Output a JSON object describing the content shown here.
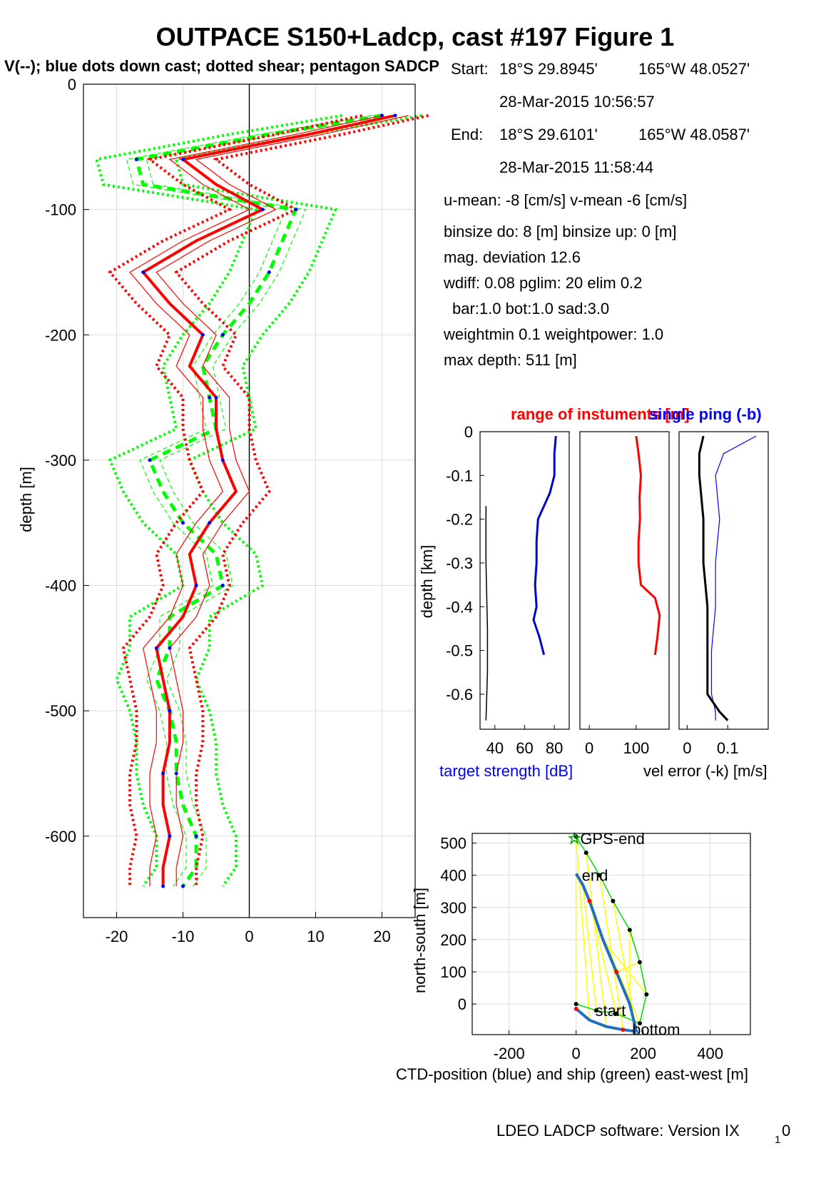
{
  "title": "OUTPACE S150+Ladcp, cast #197  Figure 1",
  "subtitle": "V(--); blue dots down cast; dotted shear; pentagon SADCP",
  "info": {
    "start_label": "Start:",
    "start_lat": "18°S 29.8945'",
    "start_lon": "165°W 48.0527'",
    "start_time": "28-Mar-2015 10:56:57",
    "end_label": "End:",
    "end_lat": "18°S 29.6101'",
    "end_lon": "165°W 48.0587'",
    "end_time": "28-Mar-2015 11:58:44",
    "means": "u-mean:  -8 [cm/s]    v-mean  -6 [cm/s]",
    "binsize": "binsize do: 8 [m]  binsize up:  0 [m]",
    "magdev": "mag. deviation 12.6",
    "params1": "wdiff: 0.08  pglim: 20  elim 0.2",
    "params2": "bar:1.0 bot:1.0 sad:3.0",
    "weights": "weightmin 0.1  weightpower: 1.0",
    "maxdepth": "max depth: 511 [m]"
  },
  "footer": "LDEO LADCP software: Version IX",
  "footer_sub": "1",
  "footer_tail": "0",
  "colors": {
    "u": "#ff0000",
    "v": "#00ff00",
    "dots": "#0000ff",
    "ts": "#0000cc",
    "rng": "#ff0000",
    "ctd": "#1f6fc5",
    "ship": "#00dd00",
    "link": "#ffff00"
  },
  "chart_data": [
    {
      "type": "line",
      "xlabel": "",
      "ylabel": "depth [m]",
      "xlim": [
        -25,
        25
      ],
      "ylim": [
        -665,
        0
      ],
      "xticks": [
        -20,
        -10,
        0,
        10,
        20
      ],
      "yticks": [
        0,
        -100,
        -200,
        -300,
        -400,
        -500,
        -600
      ],
      "grid": true,
      "depth": [
        -25,
        -40,
        -60,
        -80,
        -100,
        -125,
        -150,
        -175,
        -200,
        -225,
        -250,
        -275,
        -300,
        -325,
        -350,
        -375,
        -400,
        -425,
        -450,
        -475,
        -500,
        -525,
        -550,
        -575,
        -600,
        -625,
        -640
      ],
      "series": [
        {
          "name": "u",
          "values": [
            22,
            9,
            -10,
            -5,
            2,
            -8,
            -16,
            -12,
            -7,
            -9,
            -5,
            -5,
            -4,
            -2,
            -6,
            -9,
            -8,
            -10,
            -14,
            -13,
            -12,
            -12,
            -13,
            -13,
            -12,
            -13,
            -13
          ]
        },
        {
          "name": "v",
          "values": [
            20,
            3,
            -17,
            -16,
            7,
            5,
            3,
            0,
            -4,
            -7,
            -6,
            -5,
            -15,
            -13,
            -10,
            -5,
            -4,
            -12,
            -12,
            -14,
            -12,
            -11,
            -11,
            -10,
            -8,
            -8,
            -10
          ]
        }
      ]
    },
    {
      "type": "line",
      "title": "range of instuments [m]",
      "xlabel": "target strength [dB]",
      "ylabel": "depth [km]",
      "xlim": [
        30,
        90
      ],
      "ylim": [
        -0.68,
        0
      ],
      "xticks": [
        40,
        60,
        80
      ],
      "yticks": [
        0,
        -0.1,
        -0.2,
        -0.3,
        -0.4,
        -0.5,
        -0.6
      ],
      "depth": [
        -0.01,
        -0.05,
        -0.1,
        -0.14,
        -0.2,
        -0.25,
        -0.3,
        -0.35,
        -0.4,
        -0.43,
        -0.47,
        -0.51
      ],
      "series": [
        {
          "name": "target strength",
          "values": [
            81,
            80,
            80,
            77,
            69,
            68,
            68,
            67,
            68,
            66,
            70,
            73
          ]
        },
        {
          "name": "black",
          "depth": [
            -0.17,
            -0.3,
            -0.45,
            -0.55,
            -0.66
          ],
          "values": [
            34,
            34,
            35,
            35,
            34
          ]
        }
      ]
    },
    {
      "type": "line",
      "xlim": [
        -20,
        170
      ],
      "ylim": [
        -0.68,
        0
      ],
      "xticks": [
        0,
        100
      ],
      "depth": [
        -0.01,
        -0.05,
        -0.1,
        -0.15,
        -0.2,
        -0.25,
        -0.3,
        -0.35,
        -0.38,
        -0.42,
        -0.47,
        -0.51
      ],
      "series": [
        {
          "name": "range",
          "values": [
            100,
            105,
            110,
            107,
            108,
            105,
            105,
            110,
            140,
            150,
            145,
            140
          ]
        }
      ]
    },
    {
      "type": "line",
      "title": "single ping (-b)",
      "xlabel": "vel error (-k) [m/s]",
      "xlim": [
        -0.02,
        0.2
      ],
      "ylim": [
        -0.68,
        0
      ],
      "xticks": [
        0,
        0.1
      ],
      "depth": [
        -0.01,
        -0.05,
        -0.1,
        -0.2,
        -0.3,
        -0.4,
        -0.5,
        -0.6,
        -0.64,
        -0.66
      ],
      "series": [
        {
          "name": "vel error",
          "values": [
            0.04,
            0.03,
            0.03,
            0.04,
            0.04,
            0.05,
            0.05,
            0.05,
            0.08,
            0.1
          ]
        },
        {
          "name": "single ping",
          "values": [
            0.17,
            0.09,
            0.07,
            0.08,
            0.07,
            0.07,
            0.06,
            0.06,
            0.07,
            0.07
          ]
        }
      ]
    },
    {
      "type": "scatter",
      "xlabel": "CTD-position (blue) and ship (green) east-west [m]",
      "ylabel": "north-south [m]",
      "xlim": [
        -310,
        520
      ],
      "ylim": [
        -95,
        530
      ],
      "xticks": [
        -200,
        0,
        200,
        400
      ],
      "yticks": [
        0,
        100,
        200,
        300,
        400,
        500
      ],
      "labels": [
        "GPS-end",
        "end",
        "start",
        "bottom"
      ],
      "ctd_x": [
        0,
        40,
        90,
        140,
        180,
        160,
        120,
        80,
        60,
        40,
        20,
        0
      ],
      "ctd_y": [
        -15,
        -50,
        -70,
        -80,
        -85,
        0,
        100,
        200,
        260,
        320,
        370,
        405
      ],
      "ship_x": [
        0,
        60,
        120,
        190,
        210,
        190,
        160,
        110,
        70,
        30,
        0
      ],
      "ship_y": [
        0,
        -20,
        -30,
        -60,
        30,
        130,
        230,
        320,
        400,
        470,
        520
      ]
    }
  ]
}
